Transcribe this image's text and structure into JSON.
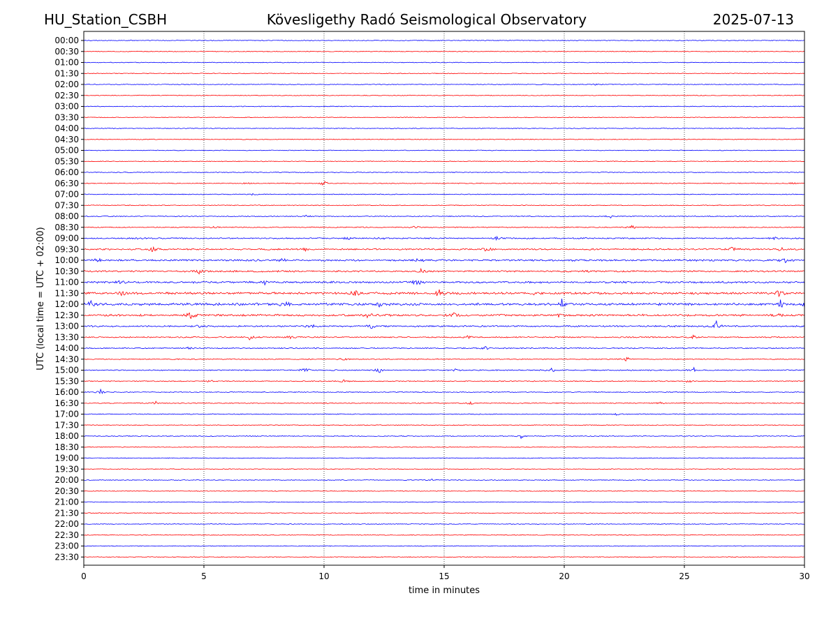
{
  "header": {
    "station": "HU_Station_CSBH",
    "observatory": "Kövesligethy Radó Seismological Observatory",
    "date": "2025-07-13"
  },
  "chart_data": {
    "type": "line",
    "title": "Kövesligethy Radó Seismological Observatory",
    "xlabel": "time in minutes",
    "ylabel": "UTC (local time = UTC + 02:00)",
    "xlim": [
      0,
      30
    ],
    "x_ticks": [
      "0",
      "5",
      "10",
      "15",
      "20",
      "25",
      "30"
    ],
    "x_tick_values": [
      0,
      5,
      10,
      15,
      20,
      25,
      30
    ],
    "grid_x": true,
    "colors": {
      "even_trace": "#0000ff",
      "odd_trace": "#ff0000",
      "grid": "#000000"
    },
    "traces": [
      {
        "label": "00:00",
        "activity": 0.05,
        "events": []
      },
      {
        "label": "00:30",
        "activity": 0.05,
        "events": []
      },
      {
        "label": "01:00",
        "activity": 0.05,
        "events": []
      },
      {
        "label": "01:30",
        "activity": 0.05,
        "events": []
      },
      {
        "label": "02:00",
        "activity": 0.05,
        "events": [
          {
            "t": 21.3,
            "amp": 1.5
          }
        ]
      },
      {
        "label": "02:30",
        "activity": 0.05,
        "events": []
      },
      {
        "label": "03:00",
        "activity": 0.05,
        "events": []
      },
      {
        "label": "03:30",
        "activity": 0.05,
        "events": []
      },
      {
        "label": "04:00",
        "activity": 0.05,
        "events": []
      },
      {
        "label": "04:30",
        "activity": 0.05,
        "events": []
      },
      {
        "label": "05:00",
        "activity": 0.05,
        "events": []
      },
      {
        "label": "05:30",
        "activity": 0.05,
        "events": []
      },
      {
        "label": "06:00",
        "activity": 0.06,
        "events": []
      },
      {
        "label": "06:30",
        "activity": 0.1,
        "events": [
          {
            "t": 10.0,
            "amp": 3
          },
          {
            "t": 6.8,
            "amp": 1.5
          },
          {
            "t": 29.5,
            "amp": 1.5
          }
        ]
      },
      {
        "label": "07:00",
        "activity": 0.08,
        "events": [
          {
            "t": 7.0,
            "amp": 1.5
          }
        ]
      },
      {
        "label": "07:30",
        "activity": 0.08,
        "events": []
      },
      {
        "label": "08:00",
        "activity": 0.12,
        "events": [
          {
            "t": 9.3,
            "amp": 2
          },
          {
            "t": 21.9,
            "amp": 2.5
          }
        ]
      },
      {
        "label": "08:30",
        "activity": 0.15,
        "events": [
          {
            "t": 5.5,
            "amp": 2
          },
          {
            "t": 13.8,
            "amp": 2
          },
          {
            "t": 22.8,
            "amp": 2.5
          }
        ]
      },
      {
        "label": "09:00",
        "activity": 0.25,
        "events": [
          {
            "t": 2.2,
            "amp": 3
          },
          {
            "t": 11.0,
            "amp": 2.5
          },
          {
            "t": 12.4,
            "amp": 3
          },
          {
            "t": 17.2,
            "amp": 3
          },
          {
            "t": 28.8,
            "amp": 3.5
          }
        ]
      },
      {
        "label": "09:30",
        "activity": 0.35,
        "events": [
          {
            "t": 2.9,
            "amp": 3.5
          },
          {
            "t": 9.2,
            "amp": 3
          },
          {
            "t": 16.8,
            "amp": 6
          },
          {
            "t": 27.0,
            "amp": 3
          },
          {
            "t": 29.0,
            "amp": 3
          }
        ]
      },
      {
        "label": "10:00",
        "activity": 0.45,
        "events": [
          {
            "t": 0.6,
            "amp": 3
          },
          {
            "t": 8.3,
            "amp": 4
          },
          {
            "t": 13.9,
            "amp": 3
          },
          {
            "t": 29.2,
            "amp": 3
          }
        ]
      },
      {
        "label": "10:30",
        "activity": 0.4,
        "events": [
          {
            "t": 4.8,
            "amp": 3.5
          },
          {
            "t": 14.0,
            "amp": 3
          },
          {
            "t": 21.0,
            "amp": 2.5
          }
        ]
      },
      {
        "label": "11:00",
        "activity": 0.5,
        "events": [
          {
            "t": 13.9,
            "amp": 5
          },
          {
            "t": 7.5,
            "amp": 3
          },
          {
            "t": 1.5,
            "amp": 2.5
          }
        ]
      },
      {
        "label": "11:30",
        "activity": 0.6,
        "events": [
          {
            "t": 1.6,
            "amp": 4
          },
          {
            "t": 11.3,
            "amp": 4
          },
          {
            "t": 14.8,
            "amp": 4.5
          },
          {
            "t": 18.9,
            "amp": 3.5
          },
          {
            "t": 28.9,
            "amp": 8
          }
        ]
      },
      {
        "label": "12:00",
        "activity": 0.7,
        "events": [
          {
            "t": 0.3,
            "amp": 5
          },
          {
            "t": 8.4,
            "amp": 5
          },
          {
            "t": 12.3,
            "amp": 4
          },
          {
            "t": 19.9,
            "amp": 6
          },
          {
            "t": 29.0,
            "amp": 6
          },
          {
            "t": 30.0,
            "amp": 6
          }
        ]
      },
      {
        "label": "12:30",
        "activity": 0.55,
        "events": [
          {
            "t": 4.4,
            "amp": 7
          },
          {
            "t": 11.8,
            "amp": 4
          },
          {
            "t": 15.4,
            "amp": 3.5
          },
          {
            "t": 19.8,
            "amp": 3
          },
          {
            "t": 28.9,
            "amp": 3.5
          }
        ]
      },
      {
        "label": "13:00",
        "activity": 0.35,
        "events": [
          {
            "t": 26.3,
            "amp": 8
          },
          {
            "t": 12.0,
            "amp": 3
          },
          {
            "t": 4.8,
            "amp": 2.5
          },
          {
            "t": 9.5,
            "amp": 2
          }
        ]
      },
      {
        "label": "13:30",
        "activity": 0.25,
        "events": [
          {
            "t": 6.9,
            "amp": 3
          },
          {
            "t": 16.0,
            "amp": 3
          },
          {
            "t": 25.4,
            "amp": 2.5
          },
          {
            "t": 8.6,
            "amp": 2
          }
        ]
      },
      {
        "label": "14:00",
        "activity": 0.2,
        "events": [
          {
            "t": 16.7,
            "amp": 3
          },
          {
            "t": 4.4,
            "amp": 2
          }
        ]
      },
      {
        "label": "14:30",
        "activity": 0.15,
        "events": [
          {
            "t": 22.6,
            "amp": 3
          },
          {
            "t": 10.8,
            "amp": 2
          }
        ]
      },
      {
        "label": "15:00",
        "activity": 0.18,
        "events": [
          {
            "t": 9.2,
            "amp": 3.5
          },
          {
            "t": 12.3,
            "amp": 3.5
          },
          {
            "t": 19.5,
            "amp": 3
          },
          {
            "t": 25.4,
            "amp": 3
          },
          {
            "t": 15.5,
            "amp": 2
          }
        ]
      },
      {
        "label": "15:30",
        "activity": 0.12,
        "events": [
          {
            "t": 5.3,
            "amp": 2
          },
          {
            "t": 10.8,
            "amp": 2.5
          },
          {
            "t": 25.2,
            "amp": 2
          }
        ]
      },
      {
        "label": "16:00",
        "activity": 0.1,
        "events": [
          {
            "t": 0.7,
            "amp": 3
          }
        ]
      },
      {
        "label": "16:30",
        "activity": 0.12,
        "events": [
          {
            "t": 3.0,
            "amp": 2
          },
          {
            "t": 16.1,
            "amp": 2
          },
          {
            "t": 24.0,
            "amp": 1.5
          }
        ]
      },
      {
        "label": "17:00",
        "activity": 0.08,
        "events": [
          {
            "t": 22.2,
            "amp": 1.5
          }
        ]
      },
      {
        "label": "17:30",
        "activity": 0.06,
        "events": []
      },
      {
        "label": "18:00",
        "activity": 0.08,
        "events": [
          {
            "t": 18.2,
            "amp": 2.5
          }
        ]
      },
      {
        "label": "18:30",
        "activity": 0.05,
        "events": []
      },
      {
        "label": "19:00",
        "activity": 0.05,
        "events": []
      },
      {
        "label": "19:30",
        "activity": 0.05,
        "events": []
      },
      {
        "label": "20:00",
        "activity": 0.06,
        "events": [
          {
            "t": 14.5,
            "amp": 1.5
          }
        ]
      },
      {
        "label": "20:30",
        "activity": 0.05,
        "events": []
      },
      {
        "label": "21:00",
        "activity": 0.05,
        "events": []
      },
      {
        "label": "21:30",
        "activity": 0.05,
        "events": []
      },
      {
        "label": "22:00",
        "activity": 0.05,
        "events": []
      },
      {
        "label": "22:30",
        "activity": 0.05,
        "events": []
      },
      {
        "label": "23:00",
        "activity": 0.05,
        "events": []
      },
      {
        "label": "23:30",
        "activity": 0.05,
        "events": []
      }
    ]
  }
}
